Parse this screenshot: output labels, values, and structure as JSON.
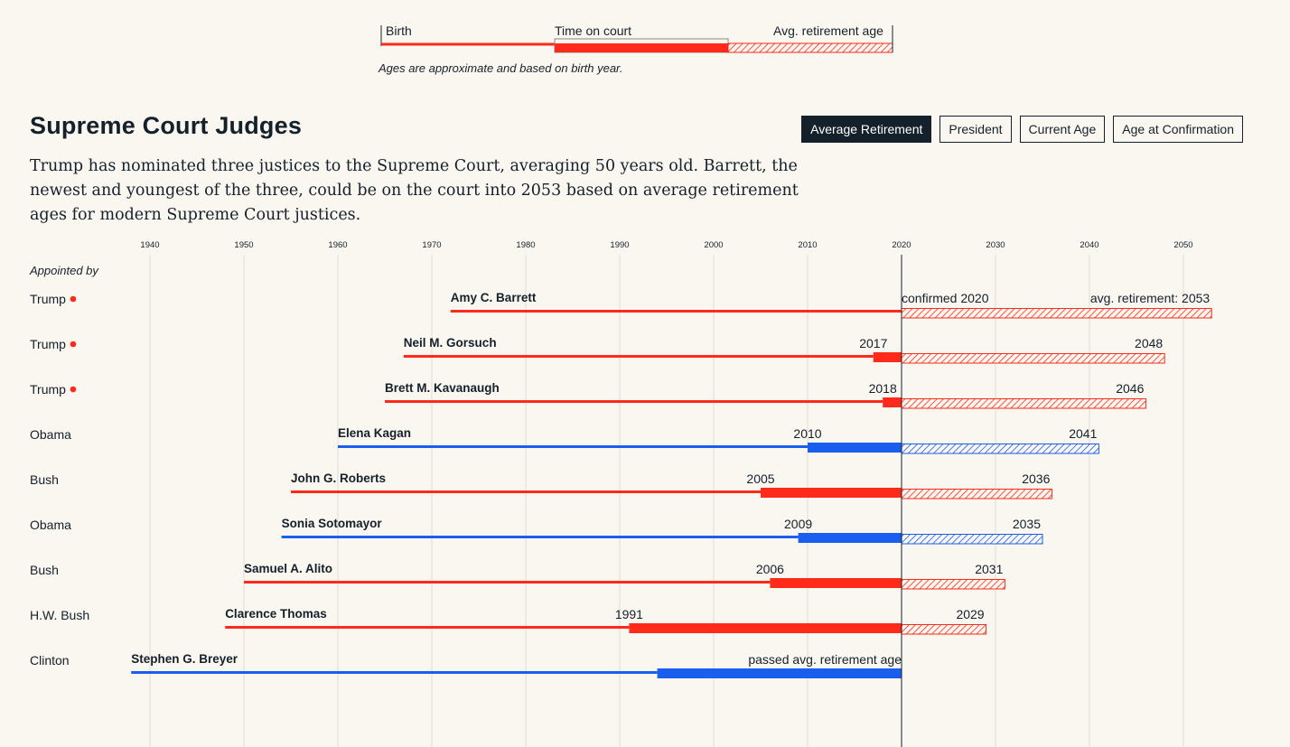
{
  "legend": {
    "birth_label": "Birth",
    "court_label": "Time on court",
    "retire_label": "Avg. retirement age",
    "note": "Ages are approximate and based on birth year."
  },
  "header": {
    "title": "Supreme Court Judges",
    "description": "Trump has nominated three justices to the Supreme Court, averaging 50 years old. Barrett, the newest and youngest of the three, could be on the court into 2053 based on average retirement ages for modern Supreme Court justices."
  },
  "toggles": [
    {
      "label": "Average Retirement",
      "active": true
    },
    {
      "label": "President",
      "active": false
    },
    {
      "label": "Current Age",
      "active": false
    },
    {
      "label": "Age at Confirmation",
      "active": false
    }
  ],
  "colors": {
    "republican": "#ff2a1a",
    "democrat": "#1a5ef0",
    "text": "#14212b",
    "background": "#faf6f0",
    "grid": "#e2ddd4"
  },
  "chart_data": {
    "type": "bar",
    "x_ticks": [
      1940,
      1950,
      1960,
      1970,
      1980,
      1990,
      2000,
      2010,
      2020,
      2030,
      2040,
      2050
    ],
    "xlim": [
      1928,
      2058
    ],
    "current_year": 2020,
    "appointed_label": "Appointed by",
    "justices": [
      {
        "name": "Amy C. Barrett",
        "president": "Trump",
        "party": "republican",
        "birth": 1972,
        "confirmed": 2020,
        "retire": 2053,
        "confirmed_label": "confirmed 2020",
        "retire_label": "avg. retirement: 2053",
        "trump_marker": true
      },
      {
        "name": "Neil M. Gorsuch",
        "president": "Trump",
        "party": "republican",
        "birth": 1967,
        "confirmed": 2017,
        "retire": 2048,
        "confirmed_label": "2017",
        "retire_label": "2048",
        "trump_marker": true
      },
      {
        "name": "Brett M. Kavanaugh",
        "president": "Trump",
        "party": "republican",
        "birth": 1965,
        "confirmed": 2018,
        "retire": 2046,
        "confirmed_label": "2018",
        "retire_label": "2046",
        "trump_marker": true
      },
      {
        "name": "Elena Kagan",
        "president": "Obama",
        "party": "democrat",
        "birth": 1960,
        "confirmed": 2010,
        "retire": 2041,
        "confirmed_label": "2010",
        "retire_label": "2041",
        "trump_marker": false
      },
      {
        "name": "John G. Roberts",
        "president": "Bush",
        "party": "republican",
        "birth": 1955,
        "confirmed": 2005,
        "retire": 2036,
        "confirmed_label": "2005",
        "retire_label": "2036",
        "trump_marker": false
      },
      {
        "name": "Sonia Sotomayor",
        "president": "Obama",
        "party": "democrat",
        "birth": 1954,
        "confirmed": 2009,
        "retire": 2035,
        "confirmed_label": "2009",
        "retire_label": "2035",
        "trump_marker": false
      },
      {
        "name": "Samuel A. Alito",
        "president": "Bush",
        "party": "republican",
        "birth": 1950,
        "confirmed": 2006,
        "retire": 2031,
        "confirmed_label": "2006",
        "retire_label": "2031",
        "trump_marker": false
      },
      {
        "name": "Clarence Thomas",
        "president": "H.W. Bush",
        "party": "republican",
        "birth": 1948,
        "confirmed": 1991,
        "retire": 2029,
        "confirmed_label": "1991",
        "retire_label": "2029",
        "trump_marker": false
      },
      {
        "name": "Stephen G. Breyer",
        "president": "Clinton",
        "party": "democrat",
        "birth": 1938,
        "confirmed": 1994,
        "retire": null,
        "confirmed_label": "passed avg. retirement age",
        "retire_label": "",
        "trump_marker": false
      }
    ]
  }
}
